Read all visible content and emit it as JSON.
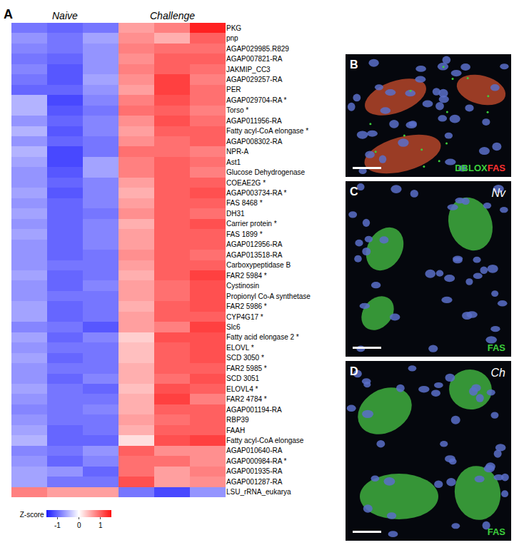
{
  "chart_data": {
    "type": "heatmap",
    "panel_letter": "A",
    "column_groups": [
      {
        "label": "Naive",
        "columns": [
          0,
          1,
          2
        ]
      },
      {
        "label": "Challenge",
        "columns": [
          3,
          4,
          5
        ]
      }
    ],
    "tick_labels": "y",
    "rows": [
      "PKG",
      "pnp",
      "AGAP029985.R829",
      "AGAP007821-RA",
      "JAKMIP_CC3",
      "AGAP029257-RA",
      "PER",
      "AGAP029704-RA *",
      "Torso *",
      "AGAP011956-RA",
      "Fatty acyl-CoA elongase *",
      "AGAP008302-RA",
      "NPR-A",
      "Ast1",
      "Glucose Dehydrogenase",
      "COEAE2G *",
      "AGAP003734-RA *",
      "FAS 8468 *",
      "DH31",
      "Carrier protein *",
      "FAS 1899 *",
      "AGAP012956-RA",
      "AGAP013518-RA",
      "Carboxypeptidase B",
      "FAR2 5984 *",
      "Cystinosin",
      "Propionyl Co-A synthetase",
      "FAR2 5986 *",
      "CYP4G17 *",
      "Slc6",
      "Fatty acid elongase 2 *",
      "ELOVL *",
      "SCD 3050 *",
      "FAR2 5985 *",
      "SCD 3051",
      "ELOVL4 *",
      "FAR2 4784 *",
      "AGAP001194-RA",
      "RBP39",
      "FAAH",
      "Fatty acyl-CoA elongase",
      "AGAP010640-RA",
      "AGAP000984-RA *",
      "AGAP001935-RA",
      "AGAP001287-RA",
      "LSU_rRNA_eukarya"
    ],
    "cells": [
      [
        -0.9,
        -1.0,
        -0.9,
        0.6,
        0.8,
        1.4
      ],
      [
        -0.7,
        -0.9,
        -0.6,
        0.7,
        0.5,
        1.0
      ],
      [
        -0.8,
        -0.9,
        -0.7,
        0.8,
        0.9,
        0.9
      ],
      [
        -0.9,
        -1.0,
        -0.7,
        0.7,
        1.0,
        1.0
      ],
      [
        -0.8,
        -1.1,
        -0.7,
        0.8,
        1.0,
        0.9
      ],
      [
        -0.9,
        -1.1,
        -0.6,
        0.7,
        1.2,
        0.8
      ],
      [
        -1.0,
        -1.0,
        -0.7,
        0.6,
        1.2,
        0.9
      ],
      [
        -0.5,
        -1.2,
        -0.8,
        0.8,
        1.1,
        0.9
      ],
      [
        -0.5,
        -1.1,
        -0.9,
        0.9,
        1.0,
        0.8
      ],
      [
        -0.7,
        -1.0,
        -0.8,
        0.7,
        1.1,
        0.9
      ],
      [
        -0.5,
        -1.1,
        -0.8,
        0.6,
        1.0,
        1.0
      ],
      [
        -0.7,
        -1.0,
        -0.9,
        0.7,
        0.9,
        1.0
      ],
      [
        -0.5,
        -1.2,
        -0.9,
        0.9,
        0.9,
        0.8
      ],
      [
        -0.6,
        -1.2,
        -0.6,
        0.8,
        1.0,
        0.9
      ],
      [
        -0.7,
        -1.1,
        -0.6,
        0.8,
        1.0,
        0.8
      ],
      [
        -0.7,
        -1.0,
        -0.8,
        0.6,
        1.0,
        1.0
      ],
      [
        -0.6,
        -1.1,
        -0.8,
        0.5,
        1.0,
        1.1
      ],
      [
        -0.7,
        -1.0,
        -0.8,
        0.6,
        1.0,
        1.0
      ],
      [
        -0.6,
        -1.0,
        -0.9,
        0.7,
        1.0,
        0.9
      ],
      [
        -0.7,
        -1.0,
        -0.8,
        0.5,
        1.0,
        1.1
      ],
      [
        -0.6,
        -1.0,
        -0.8,
        0.6,
        1.0,
        1.0
      ],
      [
        -0.7,
        -1.0,
        -0.8,
        0.6,
        1.0,
        1.0
      ],
      [
        -0.7,
        -1.0,
        -0.9,
        0.7,
        1.0,
        0.9
      ],
      [
        -0.7,
        -0.9,
        -0.9,
        0.6,
        1.0,
        1.0
      ],
      [
        -0.6,
        -1.0,
        -0.9,
        0.5,
        1.0,
        1.2
      ],
      [
        -0.7,
        -1.0,
        -0.8,
        0.6,
        0.9,
        1.1
      ],
      [
        -0.7,
        -0.9,
        -0.9,
        0.6,
        0.9,
        1.1
      ],
      [
        -0.6,
        -1.0,
        -0.9,
        0.5,
        1.0,
        1.1
      ],
      [
        -0.6,
        -1.0,
        -0.9,
        0.6,
        1.0,
        1.0
      ],
      [
        -0.8,
        -0.9,
        -1.1,
        0.6,
        0.8,
        1.2
      ],
      [
        -0.6,
        -1.0,
        -0.8,
        0.3,
        1.1,
        1.1
      ],
      [
        -0.7,
        -0.9,
        -0.9,
        0.4,
        1.0,
        1.1
      ],
      [
        -0.6,
        -1.0,
        -0.9,
        0.4,
        1.0,
        1.1
      ],
      [
        -0.7,
        -0.9,
        -0.9,
        0.5,
        1.0,
        1.0
      ],
      [
        -0.7,
        -1.0,
        -0.8,
        0.5,
        0.9,
        1.1
      ],
      [
        -0.6,
        -0.9,
        -1.0,
        0.4,
        1.1,
        1.0
      ],
      [
        -0.7,
        -0.9,
        -0.9,
        0.5,
        1.2,
        0.8
      ],
      [
        -0.8,
        -0.9,
        -0.8,
        0.5,
        1.0,
        1.0
      ],
      [
        -0.7,
        -0.9,
        -0.9,
        0.6,
        0.9,
        1.0
      ],
      [
        -0.6,
        -1.0,
        -0.9,
        0.5,
        1.0,
        1.0
      ],
      [
        -0.5,
        -1.0,
        -1.0,
        0.2,
        1.1,
        1.2
      ],
      [
        -0.8,
        -0.9,
        -0.7,
        1.0,
        0.7,
        0.7
      ],
      [
        -0.7,
        -1.0,
        -0.8,
        0.9,
        0.9,
        0.7
      ],
      [
        -0.6,
        -0.7,
        -1.0,
        0.9,
        0.6,
        0.8
      ],
      [
        -0.6,
        -0.9,
        -0.9,
        1.1,
        0.6,
        0.7
      ],
      [
        0.8,
        0.6,
        0.6,
        -0.9,
        -1.2,
        -0.7
      ]
    ],
    "colorbar_title": "Z-score",
    "colorbar_range": [
      -1.5,
      1.5
    ],
    "colorbar_ticks": [
      -1,
      0,
      1
    ]
  },
  "image_panels": [
    {
      "letter": "B",
      "labels": [
        {
          "text": "DBLOX",
          "color": "#3ccf3c"
        },
        {
          "text": "FAS",
          "color": "#ff3030"
        }
      ]
    },
    {
      "letter": "C",
      "condition": "Nv",
      "labels": [
        {
          "text": "FAS",
          "color": "#3ccf3c"
        }
      ]
    },
    {
      "letter": "D",
      "condition": "Ch",
      "labels": [
        {
          "text": "FAS",
          "color": "#3ccf3c"
        }
      ]
    }
  ]
}
